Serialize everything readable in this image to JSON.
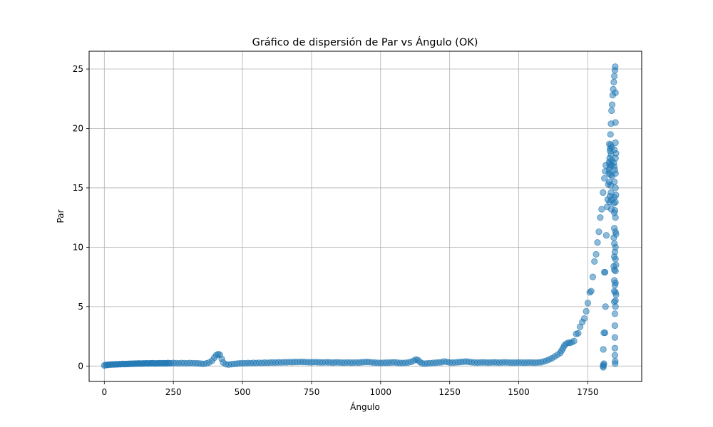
{
  "chart_data": {
    "type": "scatter",
    "title": "Gráfico de dispersión de Par vs Ángulo (OK)",
    "xlabel": "Ángulo",
    "ylabel": "Par",
    "xlim": [
      -55,
      1945
    ],
    "ylim": [
      -1.3,
      26.5
    ],
    "xticks": [
      0,
      250,
      500,
      750,
      1000,
      1250,
      1500,
      1750
    ],
    "yticks": [
      0,
      5,
      10,
      15,
      20,
      25
    ],
    "grid": true,
    "marker_color": "#1f77b4",
    "marker_alpha": 0.5,
    "points": [
      [
        0,
        0.05
      ],
      [
        5,
        0.08
      ],
      [
        10,
        0.1
      ],
      [
        15,
        0.1
      ],
      [
        20,
        0.12
      ],
      [
        25,
        0.12
      ],
      [
        30,
        0.14
      ],
      [
        35,
        0.13
      ],
      [
        40,
        0.15
      ],
      [
        45,
        0.14
      ],
      [
        50,
        0.15
      ],
      [
        55,
        0.16
      ],
      [
        60,
        0.15
      ],
      [
        65,
        0.18
      ],
      [
        70,
        0.17
      ],
      [
        75,
        0.16
      ],
      [
        80,
        0.18
      ],
      [
        85,
        0.17
      ],
      [
        90,
        0.19
      ],
      [
        95,
        0.18
      ],
      [
        100,
        0.2
      ],
      [
        105,
        0.19
      ],
      [
        110,
        0.2
      ],
      [
        115,
        0.21
      ],
      [
        120,
        0.2
      ],
      [
        125,
        0.22
      ],
      [
        130,
        0.21
      ],
      [
        135,
        0.2
      ],
      [
        140,
        0.22
      ],
      [
        145,
        0.21
      ],
      [
        150,
        0.23
      ],
      [
        155,
        0.22
      ],
      [
        160,
        0.21
      ],
      [
        165,
        0.23
      ],
      [
        170,
        0.22
      ],
      [
        175,
        0.24
      ],
      [
        180,
        0.22
      ],
      [
        185,
        0.21
      ],
      [
        190,
        0.23
      ],
      [
        195,
        0.22
      ],
      [
        200,
        0.24
      ],
      [
        205,
        0.23
      ],
      [
        210,
        0.22
      ],
      [
        215,
        0.24
      ],
      [
        220,
        0.23
      ],
      [
        225,
        0.22
      ],
      [
        230,
        0.25
      ],
      [
        235,
        0.24
      ],
      [
        240,
        0.23
      ],
      [
        250,
        0.25
      ],
      [
        260,
        0.24
      ],
      [
        270,
        0.23
      ],
      [
        280,
        0.25
      ],
      [
        290,
        0.24
      ],
      [
        300,
        0.23
      ],
      [
        310,
        0.25
      ],
      [
        320,
        0.24
      ],
      [
        330,
        0.23
      ],
      [
        340,
        0.22
      ],
      [
        350,
        0.2
      ],
      [
        360,
        0.18
      ],
      [
        370,
        0.22
      ],
      [
        380,
        0.3
      ],
      [
        390,
        0.45
      ],
      [
        398,
        0.7
      ],
      [
        405,
        0.9
      ],
      [
        412,
        1.0
      ],
      [
        418,
        0.95
      ],
      [
        425,
        0.6
      ],
      [
        430,
        0.3
      ],
      [
        440,
        0.15
      ],
      [
        450,
        0.12
      ],
      [
        460,
        0.15
      ],
      [
        470,
        0.18
      ],
      [
        480,
        0.2
      ],
      [
        490,
        0.22
      ],
      [
        500,
        0.24
      ],
      [
        510,
        0.23
      ],
      [
        520,
        0.25
      ],
      [
        530,
        0.24
      ],
      [
        540,
        0.26
      ],
      [
        550,
        0.25
      ],
      [
        560,
        0.27
      ],
      [
        570,
        0.26
      ],
      [
        580,
        0.28
      ],
      [
        590,
        0.27
      ],
      [
        600,
        0.29
      ],
      [
        610,
        0.3
      ],
      [
        620,
        0.29
      ],
      [
        630,
        0.31
      ],
      [
        640,
        0.3
      ],
      [
        650,
        0.32
      ],
      [
        660,
        0.31
      ],
      [
        670,
        0.33
      ],
      [
        680,
        0.32
      ],
      [
        690,
        0.34
      ],
      [
        700,
        0.33
      ],
      [
        710,
        0.35
      ],
      [
        720,
        0.34
      ],
      [
        730,
        0.33
      ],
      [
        740,
        0.32
      ],
      [
        750,
        0.31
      ],
      [
        760,
        0.33
      ],
      [
        770,
        0.32
      ],
      [
        780,
        0.31
      ],
      [
        790,
        0.3
      ],
      [
        800,
        0.32
      ],
      [
        810,
        0.31
      ],
      [
        820,
        0.3
      ],
      [
        830,
        0.29
      ],
      [
        840,
        0.31
      ],
      [
        850,
        0.3
      ],
      [
        860,
        0.29
      ],
      [
        870,
        0.28
      ],
      [
        880,
        0.3
      ],
      [
        890,
        0.29
      ],
      [
        900,
        0.28
      ],
      [
        910,
        0.3
      ],
      [
        920,
        0.29
      ],
      [
        930,
        0.31
      ],
      [
        940,
        0.33
      ],
      [
        950,
        0.34
      ],
      [
        960,
        0.33
      ],
      [
        970,
        0.3
      ],
      [
        980,
        0.28
      ],
      [
        990,
        0.27
      ],
      [
        1000,
        0.26
      ],
      [
        1010,
        0.27
      ],
      [
        1020,
        0.28
      ],
      [
        1030,
        0.29
      ],
      [
        1040,
        0.3
      ],
      [
        1050,
        0.31
      ],
      [
        1060,
        0.28
      ],
      [
        1070,
        0.26
      ],
      [
        1080,
        0.25
      ],
      [
        1090,
        0.27
      ],
      [
        1100,
        0.3
      ],
      [
        1110,
        0.35
      ],
      [
        1120,
        0.45
      ],
      [
        1128,
        0.55
      ],
      [
        1135,
        0.5
      ],
      [
        1142,
        0.35
      ],
      [
        1150,
        0.22
      ],
      [
        1160,
        0.2
      ],
      [
        1170,
        0.22
      ],
      [
        1180,
        0.24
      ],
      [
        1190,
        0.26
      ],
      [
        1200,
        0.28
      ],
      [
        1210,
        0.3
      ],
      [
        1220,
        0.32
      ],
      [
        1230,
        0.38
      ],
      [
        1240,
        0.35
      ],
      [
        1250,
        0.3
      ],
      [
        1260,
        0.28
      ],
      [
        1270,
        0.3
      ],
      [
        1280,
        0.32
      ],
      [
        1290,
        0.34
      ],
      [
        1300,
        0.36
      ],
      [
        1310,
        0.38
      ],
      [
        1320,
        0.35
      ],
      [
        1330,
        0.32
      ],
      [
        1340,
        0.3
      ],
      [
        1350,
        0.29
      ],
      [
        1360,
        0.3
      ],
      [
        1370,
        0.31
      ],
      [
        1380,
        0.3
      ],
      [
        1390,
        0.29
      ],
      [
        1400,
        0.3
      ],
      [
        1410,
        0.31
      ],
      [
        1420,
        0.3
      ],
      [
        1430,
        0.29
      ],
      [
        1440,
        0.3
      ],
      [
        1450,
        0.31
      ],
      [
        1460,
        0.3
      ],
      [
        1470,
        0.29
      ],
      [
        1480,
        0.28
      ],
      [
        1490,
        0.29
      ],
      [
        1500,
        0.3
      ],
      [
        1510,
        0.29
      ],
      [
        1520,
        0.28
      ],
      [
        1530,
        0.29
      ],
      [
        1540,
        0.3
      ],
      [
        1550,
        0.29
      ],
      [
        1560,
        0.28
      ],
      [
        1570,
        0.3
      ],
      [
        1580,
        0.32
      ],
      [
        1590,
        0.38
      ],
      [
        1600,
        0.45
      ],
      [
        1610,
        0.55
      ],
      [
        1620,
        0.65
      ],
      [
        1630,
        0.8
      ],
      [
        1640,
        0.95
      ],
      [
        1650,
        1.1
      ],
      [
        1655,
        1.3
      ],
      [
        1660,
        1.5
      ],
      [
        1665,
        1.7
      ],
      [
        1670,
        1.85
      ],
      [
        1678,
        1.95
      ],
      [
        1685,
        1.95
      ],
      [
        1692,
        2.0
      ],
      [
        1700,
        2.1
      ],
      [
        1708,
        2.7
      ],
      [
        1715,
        2.75
      ],
      [
        1722,
        3.3
      ],
      [
        1730,
        3.7
      ],
      [
        1737,
        4.0
      ],
      [
        1744,
        4.6
      ],
      [
        1750,
        5.3
      ],
      [
        1757,
        6.2
      ],
      [
        1762,
        6.3
      ],
      [
        1768,
        7.5
      ],
      [
        1774,
        8.8
      ],
      [
        1780,
        9.4
      ],
      [
        1785,
        10.4
      ],
      [
        1790,
        11.3
      ],
      [
        1795,
        12.5
      ],
      [
        1800,
        13.2
      ],
      [
        1805,
        14.6
      ],
      [
        1810,
        15.8
      ],
      [
        1813,
        16.4
      ],
      [
        1815,
        16.9
      ],
      [
        1817,
        11.0
      ],
      [
        1820,
        13.4
      ],
      [
        1822,
        14.0
      ],
      [
        1824,
        15.3
      ],
      [
        1826,
        16.2
      ],
      [
        1828,
        17.2
      ],
      [
        1830,
        18.3
      ],
      [
        1832,
        19.5
      ],
      [
        1834,
        20.4
      ],
      [
        1836,
        21.5
      ],
      [
        1838,
        22.0
      ],
      [
        1840,
        22.8
      ],
      [
        1842,
        23.3
      ],
      [
        1844,
        23.9
      ],
      [
        1846,
        24.4
      ],
      [
        1848,
        24.9
      ],
      [
        1849,
        25.2
      ],
      [
        1850,
        23.0
      ],
      [
        1850,
        20.5
      ],
      [
        1805,
        0.0
      ],
      [
        1806,
        -0.1
      ],
      [
        1807,
        0.1
      ],
      [
        1808,
        0.2
      ],
      [
        1806,
        1.4
      ],
      [
        1808,
        2.8
      ],
      [
        1812,
        2.8
      ],
      [
        1810,
        7.9
      ],
      [
        1812,
        7.9
      ],
      [
        1814,
        5.0
      ],
      [
        1828,
        18.7
      ],
      [
        1829,
        17.5
      ],
      [
        1830,
        16.7
      ],
      [
        1828,
        15.5
      ],
      [
        1830,
        14.3
      ],
      [
        1829,
        13.8
      ],
      [
        1828,
        17.0
      ],
      [
        1831,
        18.1
      ],
      [
        1832,
        16.1
      ],
      [
        1827,
        16.5
      ],
      [
        1833,
        18.6
      ],
      [
        1834,
        17.8
      ],
      [
        1835,
        16.9
      ],
      [
        1833,
        15.2
      ],
      [
        1834,
        14.6
      ],
      [
        1836,
        18.4
      ],
      [
        1837,
        17.3
      ],
      [
        1835,
        13.2
      ],
      [
        1836,
        14.0
      ],
      [
        1838,
        16.0
      ],
      [
        1850,
        18.8
      ],
      [
        1850,
        17.5
      ],
      [
        1850,
        16.2
      ],
      [
        1850,
        15.0
      ],
      [
        1850,
        13.8
      ],
      [
        1850,
        12.5
      ],
      [
        1850,
        11.3
      ],
      [
        1850,
        10.0
      ],
      [
        1850,
        9.0
      ],
      [
        1850,
        8.0
      ],
      [
        1850,
        7.0
      ],
      [
        1850,
        6.2
      ],
      [
        1850,
        5.5
      ],
      [
        1850,
        5.0
      ],
      [
        1848,
        4.4
      ],
      [
        1848,
        3.4
      ],
      [
        1848,
        2.4
      ],
      [
        1848,
        1.5
      ],
      [
        1848,
        0.9
      ],
      [
        1849,
        0.4
      ],
      [
        1849,
        0.2
      ],
      [
        1846,
        18.2
      ],
      [
        1846,
        16.8
      ],
      [
        1846,
        15.5
      ],
      [
        1846,
        14.2
      ],
      [
        1846,
        12.9
      ],
      [
        1846,
        11.6
      ],
      [
        1846,
        10.3
      ],
      [
        1846,
        9.2
      ],
      [
        1846,
        8.1
      ],
      [
        1846,
        7.2
      ],
      [
        1846,
        6.3
      ],
      [
        1846,
        5.4
      ],
      [
        1848,
        16.5
      ],
      [
        1848,
        13.1
      ],
      [
        1848,
        9.6
      ],
      [
        1848,
        6.8
      ],
      [
        1852,
        17.9
      ],
      [
        1852,
        14.4
      ],
      [
        1852,
        11.1
      ],
      [
        1852,
        8.5
      ],
      [
        1852,
        6.0
      ],
      [
        1844,
        17.1
      ],
      [
        1844,
        13.7
      ],
      [
        1844,
        10.8
      ],
      [
        1844,
        8.4
      ]
    ]
  }
}
